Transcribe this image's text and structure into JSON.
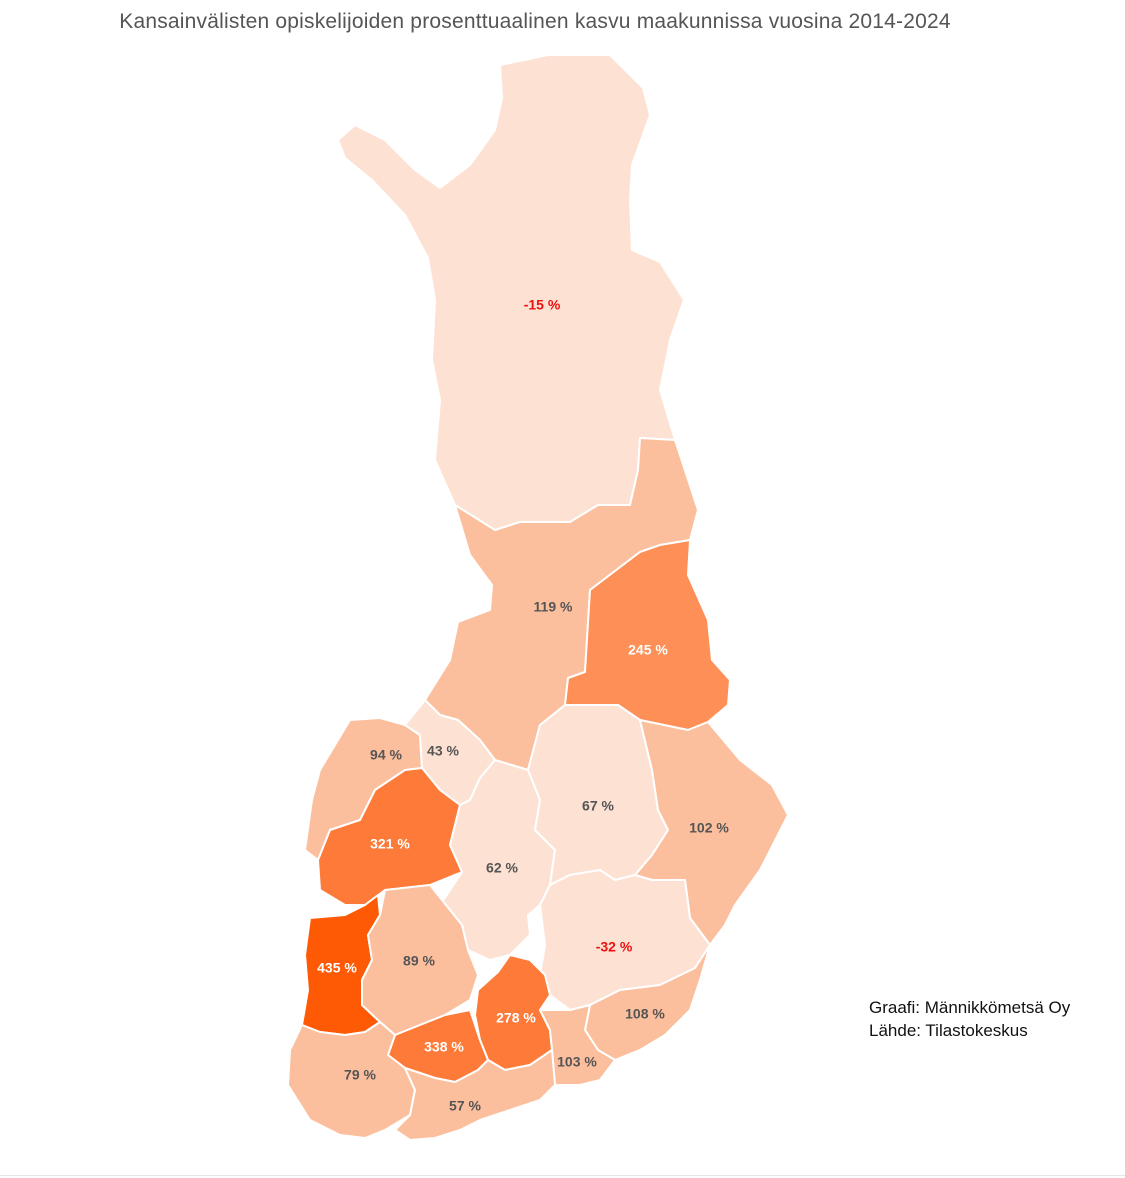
{
  "title": "Kansainvälisten opiskelijoiden prosenttuaalinen kasvu maakunnissa vuosina 2014-2024",
  "credits": {
    "graph": "Graafi: Männikkömetsä Oy",
    "source": "Lähde: Tilastokeskus"
  },
  "colors": {
    "very_light": "#fde2d4",
    "light": "#fcbf9d",
    "medium": "#fd8f57",
    "strong": "#fd7a39",
    "darkest": "#fe5a06",
    "label_dark": "#555555",
    "label_white": "#ffffff",
    "label_negative": "#ee1111"
  },
  "regions": [
    {
      "id": "lappi",
      "value_label": "-15 %",
      "color": "very_light",
      "label_color": "label_negative"
    },
    {
      "id": "pohjois-pohjanmaa",
      "value_label": "119 %",
      "color": "light",
      "label_color": "label_dark"
    },
    {
      "id": "kainuu",
      "value_label": "245 %",
      "color": "medium",
      "label_color": "label_white"
    },
    {
      "id": "pohjanmaa",
      "value_label": "94 %",
      "color": "light",
      "label_color": "label_dark"
    },
    {
      "id": "keski-pohjanmaa",
      "value_label": "43 %",
      "color": "very_light",
      "label_color": "label_dark"
    },
    {
      "id": "etela-pohjanmaa",
      "value_label": "321 %",
      "color": "strong",
      "label_color": "label_white"
    },
    {
      "id": "keski-suomi",
      "value_label": "62 %",
      "color": "very_light",
      "label_color": "label_dark"
    },
    {
      "id": "pohjois-savo",
      "value_label": "67 %",
      "color": "very_light",
      "label_color": "label_dark"
    },
    {
      "id": "pohjois-karjala",
      "value_label": "102 %",
      "color": "light",
      "label_color": "label_dark"
    },
    {
      "id": "satakunta",
      "value_label": "435 %",
      "color": "darkest",
      "label_color": "label_white"
    },
    {
      "id": "pirkanmaa",
      "value_label": "89 %",
      "color": "light",
      "label_color": "label_dark"
    },
    {
      "id": "etela-savo",
      "value_label": "-32 %",
      "color": "very_light",
      "label_color": "label_negative"
    },
    {
      "id": "paijat-hame",
      "value_label": "278 %",
      "color": "strong",
      "label_color": "label_white"
    },
    {
      "id": "kanta-hame",
      "value_label": "338 %",
      "color": "strong",
      "label_color": "label_white"
    },
    {
      "id": "etela-karjala",
      "value_label": "108 %",
      "color": "light",
      "label_color": "label_dark"
    },
    {
      "id": "kymenlaakso",
      "value_label": "103 %",
      "color": "light",
      "label_color": "label_dark"
    },
    {
      "id": "varsinais-suomi",
      "value_label": "79 %",
      "color": "light",
      "label_color": "label_dark"
    },
    {
      "id": "uusimaa",
      "value_label": "57 %",
      "color": "light",
      "label_color": "label_dark"
    }
  ]
}
